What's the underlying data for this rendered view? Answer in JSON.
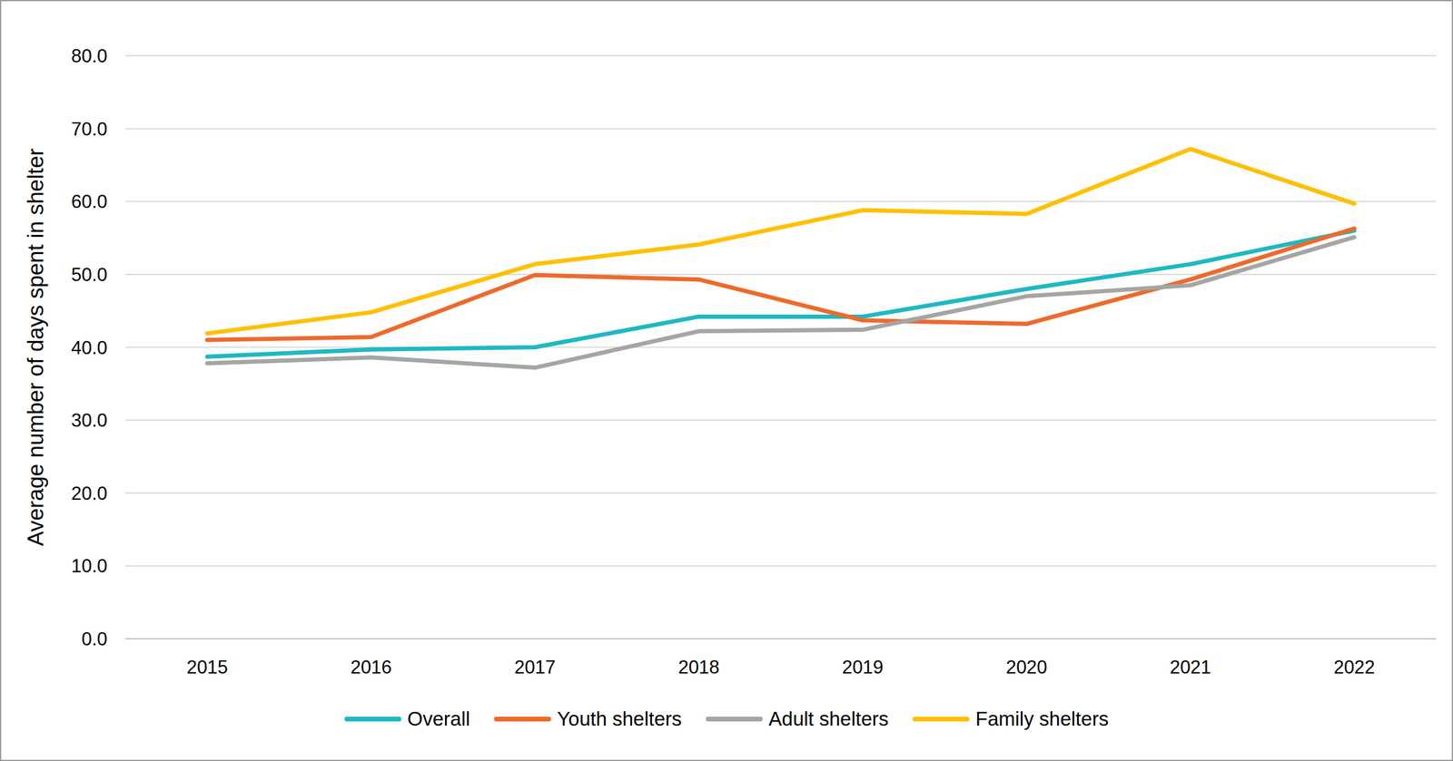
{
  "chart_data": {
    "type": "line",
    "y_label": "Average number of days spent in shelter",
    "categories": [
      "2015",
      "2016",
      "2017",
      "2018",
      "2019",
      "2020",
      "2021",
      "2022"
    ],
    "series": [
      {
        "name": "Overall",
        "color": "#1FB8C3",
        "values": [
          38.7,
          39.7,
          40.0,
          44.2,
          44.2,
          48.0,
          51.4,
          56.0
        ]
      },
      {
        "name": "Youth shelters",
        "color": "#EE6A2C",
        "values": [
          41.0,
          41.4,
          49.9,
          49.3,
          43.7,
          43.2,
          49.3,
          56.3
        ]
      },
      {
        "name": "Adult shelters",
        "color": "#A5A5A5",
        "values": [
          37.8,
          38.6,
          37.2,
          42.2,
          42.4,
          47.0,
          48.5,
          55.1
        ]
      },
      {
        "name": "Family shelters",
        "color": "#FFC000",
        "values": [
          41.9,
          44.8,
          51.4,
          54.1,
          58.8,
          58.3,
          67.2,
          59.7
        ]
      }
    ],
    "ylim": [
      0,
      80
    ],
    "yticks": [
      {
        "value": 0,
        "label": "0.0"
      },
      {
        "value": 10,
        "label": "10.0"
      },
      {
        "value": 20,
        "label": "20.0"
      },
      {
        "value": 30,
        "label": "30.0"
      },
      {
        "value": 40,
        "label": "40.0"
      },
      {
        "value": 50,
        "label": "50.0"
      },
      {
        "value": 60,
        "label": "60.0"
      },
      {
        "value": 70,
        "label": "70.0"
      },
      {
        "value": 80,
        "label": "80.0"
      }
    ],
    "grid": true,
    "legend": "bottom"
  }
}
